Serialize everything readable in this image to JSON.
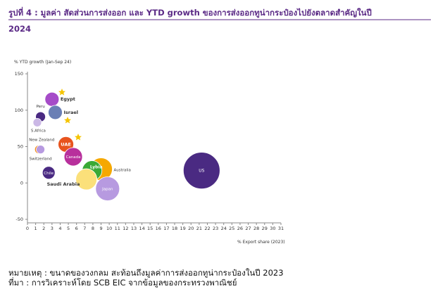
{
  "chart_data": {
    "type": "bubble",
    "title": "รูปที่ 4 : มูลค่า สัดส่วนการส่งออก และ YTD growth ของการส่งออกทูน่ากระป๋องไปยังตลาดสำคัญในปี",
    "title_year": "2024",
    "ylabel": "% YTD growth (Jan-Sep 24)",
    "xlabel": "% Export share (2023)",
    "xlim": [
      0,
      31
    ],
    "xticks": [
      0,
      1,
      2,
      3,
      4,
      5,
      6,
      7,
      8,
      9,
      10,
      11,
      12,
      13,
      14,
      15,
      16,
      17,
      18,
      19,
      20,
      21,
      22,
      23,
      24,
      25,
      26,
      27,
      28,
      29,
      30,
      31
    ],
    "ylim": [
      -50,
      150
    ],
    "yticks": [
      -50,
      0,
      50,
      100,
      150
    ],
    "points": [
      {
        "name": "Egypt",
        "x": 3.0,
        "y": 115,
        "size": 100,
        "color": "#a64cc8"
      },
      {
        "name": "Peru",
        "x": 1.6,
        "y": 91,
        "size": 49,
        "color": "#4a2a82"
      },
      {
        "name": "Israel",
        "x": 3.4,
        "y": 97,
        "size": 100,
        "color": "#6a7fb5"
      },
      {
        "name": "S.Africa",
        "x": 1.2,
        "y": 83,
        "size": 36,
        "color": "#cbb8e6"
      },
      {
        "name": "New Zealand",
        "x": 1.4,
        "y": 46,
        "size": 36,
        "color": "#f08a1c"
      },
      {
        "name": "Switzerland",
        "x": 1.6,
        "y": 46,
        "size": 36,
        "color": "#b79ae0"
      },
      {
        "name": "UAE",
        "x": 4.7,
        "y": 53,
        "size": 121,
        "color": "#e8541e"
      },
      {
        "name": "Canada",
        "x": 5.6,
        "y": 36,
        "size": 169,
        "color": "#b8309c"
      },
      {
        "name": "Chile",
        "x": 2.6,
        "y": 14,
        "size": 81,
        "color": "#4a2a82"
      },
      {
        "name": "Australia",
        "x": 9.0,
        "y": 19,
        "size": 256,
        "color": "#f5a800"
      },
      {
        "name": "Lybia",
        "x": 7.9,
        "y": 17,
        "size": 196,
        "color": "#3aa935"
      },
      {
        "name": "Saudi Arabia",
        "x": 7.2,
        "y": 5,
        "size": 225,
        "color": "#fbe07a"
      },
      {
        "name": "Japan",
        "x": 9.8,
        "y": -8,
        "size": 289,
        "color": "#b79ae0"
      },
      {
        "name": "US",
        "x": 21.3,
        "y": 17,
        "size": 676,
        "color": "#4a2a82"
      }
    ],
    "notes": [
      "หมายเหตุ : ขนาดของวงกลม สะท้อนถึงมูลค่าการส่งออกทูน่ากระป๋องในปี 2023",
      "ที่มา : การวิเคราะห์โดย SCB EIC จากข้อมูลของกระทรวงพาณิชย์"
    ]
  }
}
